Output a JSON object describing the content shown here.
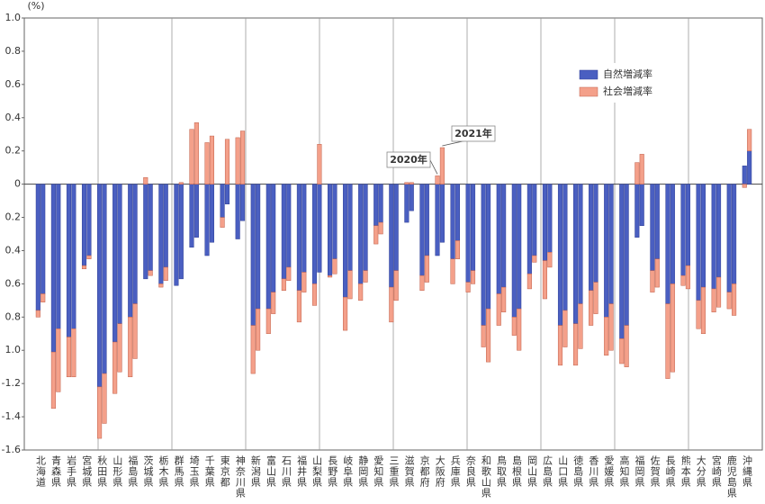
{
  "chart_data": {
    "type": "bar",
    "y_unit": "(%)",
    "categories": [
      "北海道",
      "青森県",
      "岩手県",
      "宮城県",
      "秋田県",
      "山形県",
      "福島県",
      "茨城県",
      "栃木県",
      "群馬県",
      "埼玉県",
      "千葉県",
      "東京都",
      "神奈川県",
      "新潟県",
      "富山県",
      "石川県",
      "福井県",
      "山梨県",
      "長野県",
      "岐阜県",
      "静岡県",
      "愛知県",
      "三重県",
      "滋賀県",
      "京都府",
      "大阪府",
      "兵庫県",
      "奈良県",
      "和歌山県",
      "鳥取県",
      "島根県",
      "岡山県",
      "広島県",
      "山口県",
      "徳島県",
      "香川県",
      "愛媛県",
      "高知県",
      "福岡県",
      "佐賀県",
      "長崎県",
      "熊本県",
      "大分県",
      "宮崎県",
      "鹿児島県",
      "沖縄県"
    ],
    "series": [
      {
        "name": "自然増減率",
        "color": "#4a5fc1",
        "values": [
          [
            -0.76,
            -0.66
          ],
          [
            -1.01,
            -0.87
          ],
          [
            -0.92,
            -0.87
          ],
          [
            -0.49,
            -0.43
          ],
          [
            -1.22,
            -1.14
          ],
          [
            -0.95,
            -0.84
          ],
          [
            -0.8,
            -0.72
          ],
          [
            -0.57,
            -0.52
          ],
          [
            -0.6,
            -0.5
          ],
          [
            -0.61,
            -0.57
          ],
          [
            -0.38,
            -0.32
          ],
          [
            -0.43,
            -0.35
          ],
          [
            -0.2,
            -0.12
          ],
          [
            -0.33,
            -0.22
          ],
          [
            -0.85,
            -0.75
          ],
          [
            -0.75,
            -0.65
          ],
          [
            -0.57,
            -0.5
          ],
          [
            -0.64,
            -0.53
          ],
          [
            -0.6,
            -0.53
          ],
          [
            -0.55,
            -0.45
          ],
          [
            -0.68,
            -0.52
          ],
          [
            -0.6,
            -0.52
          ],
          [
            -0.25,
            -0.23
          ],
          [
            -0.62,
            -0.52
          ],
          [
            -0.23,
            -0.16
          ],
          [
            -0.55,
            -0.43
          ],
          [
            -0.43,
            -0.35
          ],
          [
            -0.45,
            -0.34
          ],
          [
            -0.59,
            -0.52
          ],
          [
            -0.85,
            -0.75
          ],
          [
            -0.66,
            -0.62
          ],
          [
            -0.8,
            -0.75
          ],
          [
            -0.54,
            -0.43
          ],
          [
            -0.46,
            -0.41
          ],
          [
            -0.85,
            -0.76
          ],
          [
            -0.84,
            -0.72
          ],
          [
            -0.64,
            -0.59
          ],
          [
            -0.8,
            -0.72
          ],
          [
            -0.93,
            -0.85
          ],
          [
            -0.32,
            -0.25
          ],
          [
            -0.52,
            -0.45
          ],
          [
            -0.72,
            -0.6
          ],
          [
            -0.55,
            -0.49
          ],
          [
            -0.7,
            -0.62
          ],
          [
            -0.63,
            -0.56
          ],
          [
            -0.65,
            -0.6
          ],
          [
            0.11,
            0.2
          ]
        ]
      },
      {
        "name": "社会増減率",
        "color": "#f4a08a",
        "values": [
          [
            -0.04,
            -0.05
          ],
          [
            -0.34,
            -0.38
          ],
          [
            -0.24,
            -0.29
          ],
          [
            -0.02,
            -0.02
          ],
          [
            -0.31,
            -0.3
          ],
          [
            -0.31,
            -0.29
          ],
          [
            -0.36,
            -0.33
          ],
          [
            0.04,
            -0.03
          ],
          [
            -0.02,
            -0.08
          ],
          [
            0,
            0.01
          ],
          [
            0.33,
            0.37
          ],
          [
            0.25,
            0.29
          ],
          [
            -0.06,
            0.27
          ],
          [
            0.28,
            0.32
          ],
          [
            -0.29,
            -0.25
          ],
          [
            -0.15,
            -0.13
          ],
          [
            -0.07,
            -0.08
          ],
          [
            -0.19,
            -0.12
          ],
          [
            -0.13,
            0.24
          ],
          [
            -0.01,
            -0.09
          ],
          [
            -0.2,
            -0.17
          ],
          [
            -0.1,
            -0.07
          ],
          [
            -0.11,
            -0.07
          ],
          [
            -0.21,
            -0.18
          ],
          [
            0.01,
            0.01
          ],
          [
            -0.09,
            -0.16
          ],
          [
            0.05,
            0.22
          ],
          [
            -0.15,
            -0.11
          ],
          [
            -0.06,
            -0.08
          ],
          [
            -0.13,
            -0.32
          ],
          [
            -0.19,
            -0.15
          ],
          [
            -0.11,
            -0.25
          ],
          [
            -0.09,
            -0.04
          ],
          [
            -0.23,
            -0.09
          ],
          [
            -0.24,
            -0.22
          ],
          [
            -0.25,
            -0.27
          ],
          [
            -0.21,
            -0.19
          ],
          [
            -0.23,
            -0.28
          ],
          [
            -0.15,
            -0.25
          ],
          [
            0.13,
            0.18
          ],
          [
            -0.13,
            -0.17
          ],
          [
            -0.45,
            -0.53
          ],
          [
            -0.06,
            -0.14
          ],
          [
            -0.17,
            -0.28
          ],
          [
            -0.14,
            -0.18
          ],
          [
            -0.1,
            -0.19
          ],
          [
            -0.02,
            0.13
          ]
        ]
      }
    ],
    "annotations": [
      "2020年",
      "2021年"
    ],
    "ylim": [
      -1.6,
      1.0
    ],
    "yticks": [
      {
        "value": 1.0,
        "label": "1.0"
      },
      0.8,
      0.6,
      0.4,
      0.2,
      0,
      {
        "value": -0.2,
        "label": "0.2"
      },
      {
        "value": -0.4,
        "label": "0.4"
      },
      {
        "value": -0.6,
        "label": "0.6"
      },
      {
        "value": -0.8,
        "label": "0.8"
      },
      {
        "value": -1.0,
        "label": "1.0"
      },
      -1.2,
      -1.4,
      -1.6
    ]
  }
}
